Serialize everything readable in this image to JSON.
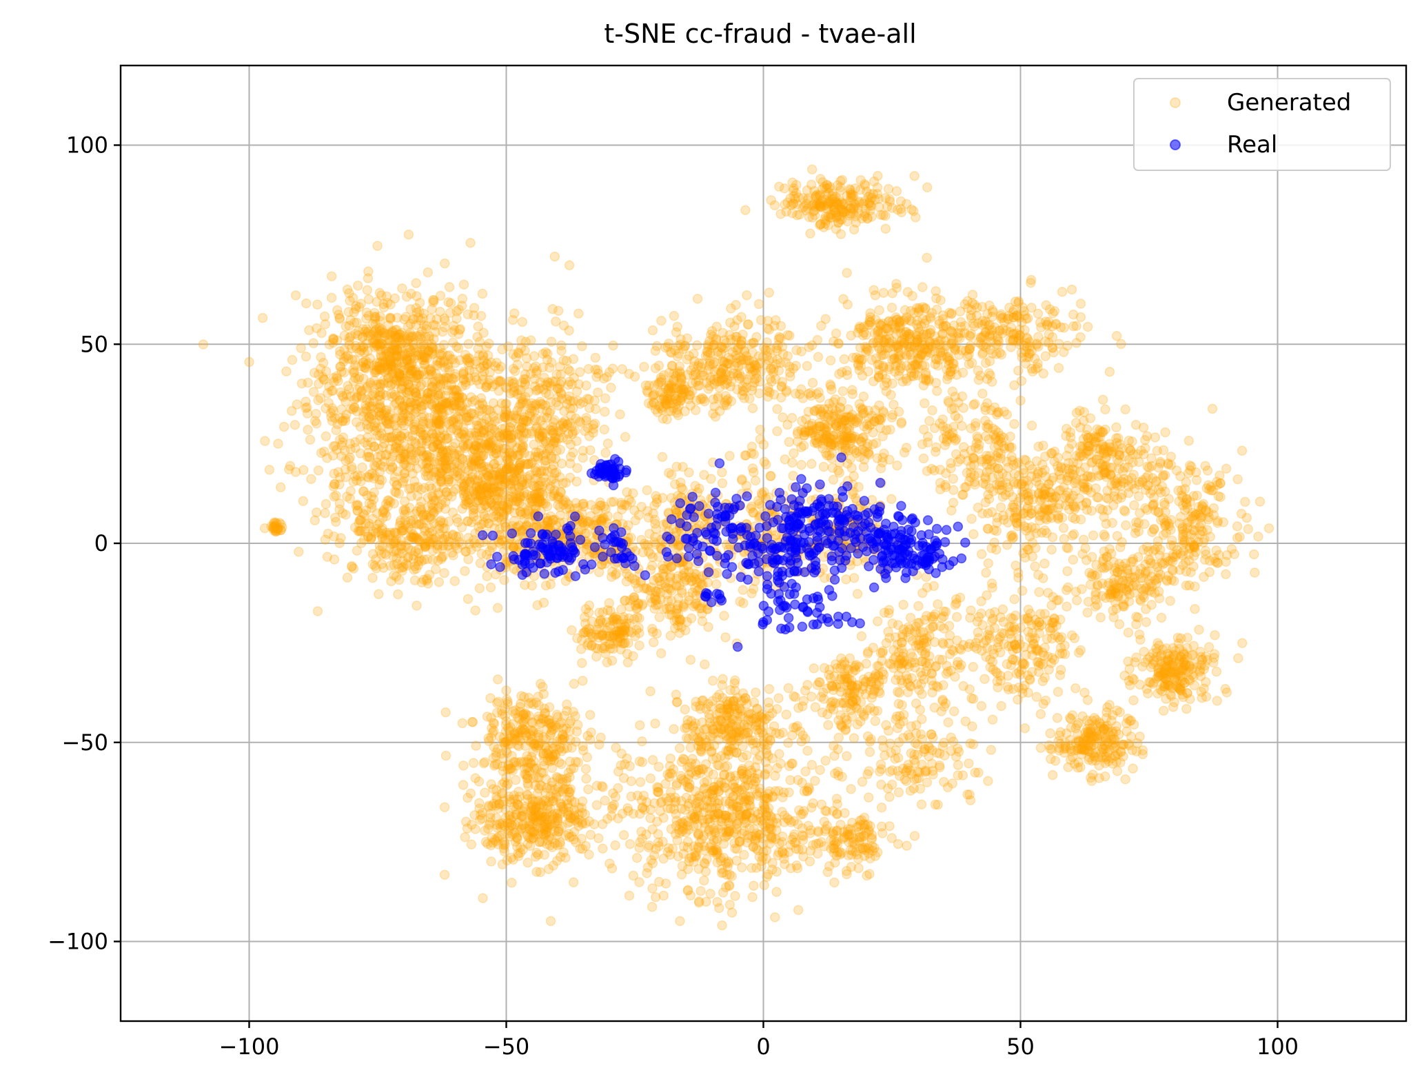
{
  "chart_data": {
    "type": "scatter",
    "title": "t-SNE cc-fraud - tvae-all",
    "xlabel": "",
    "ylabel": "",
    "xlim": [
      -125,
      125
    ],
    "ylim": [
      -120,
      120
    ],
    "xticks": [
      -100,
      -50,
      0,
      50,
      100
    ],
    "yticks": [
      -100,
      -50,
      0,
      50,
      100
    ],
    "xtick_labels": [
      "−100",
      "−50",
      "0",
      "50",
      "100"
    ],
    "ytick_labels": [
      "−100",
      "−50",
      "0",
      "50",
      "100"
    ],
    "grid": true,
    "legend": "top-right",
    "series": [
      {
        "name": "Generated",
        "color": "#ffa500",
        "alpha": 0.25,
        "clusters": [
          {
            "cx": -65,
            "cy": 28,
            "sx": 11,
            "sy": 15,
            "n": 1100
          },
          {
            "cx": -50,
            "cy": 15,
            "sx": 6,
            "sy": 12,
            "n": 500
          },
          {
            "cx": -72,
            "cy": 48,
            "sx": 7,
            "sy": 8,
            "n": 400
          },
          {
            "cx": -70,
            "cy": 0,
            "sx": 6,
            "sy": 5,
            "n": 200
          },
          {
            "cx": -40,
            "cy": 35,
            "sx": 6,
            "sy": 8,
            "n": 200
          },
          {
            "cx": -35,
            "cy": 2,
            "sx": 7,
            "sy": 5,
            "n": 250
          },
          {
            "cx": -30,
            "cy": -22,
            "sx": 3,
            "sy": 3,
            "n": 120
          },
          {
            "cx": -18,
            "cy": -12,
            "sx": 5,
            "sy": 7,
            "n": 200
          },
          {
            "cx": -15,
            "cy": 5,
            "sx": 5,
            "sy": 6,
            "n": 150
          },
          {
            "cx": -5,
            "cy": 45,
            "sx": 7,
            "sy": 6,
            "n": 300
          },
          {
            "cx": -18,
            "cy": 38,
            "sx": 3,
            "sy": 3,
            "n": 100
          },
          {
            "cx": 15,
            "cy": 85,
            "sx": 6,
            "sy": 3,
            "n": 220
          },
          {
            "cx": 0,
            "cy": 5,
            "sx": 4,
            "sy": 8,
            "n": 150
          },
          {
            "cx": 15,
            "cy": 28,
            "sx": 5,
            "sy": 5,
            "n": 250
          },
          {
            "cx": 15,
            "cy": 2,
            "sx": 5,
            "sy": 6,
            "n": 150
          },
          {
            "cx": 27,
            "cy": 50,
            "sx": 6,
            "sy": 6,
            "n": 300
          },
          {
            "cx": 45,
            "cy": 52,
            "sx": 8,
            "sy": 5,
            "n": 250
          },
          {
            "cx": 40,
            "cy": 25,
            "sx": 5,
            "sy": 7,
            "n": 150
          },
          {
            "cx": 52,
            "cy": 10,
            "sx": 5,
            "sy": 7,
            "n": 200
          },
          {
            "cx": 65,
            "cy": 20,
            "sx": 6,
            "sy": 7,
            "n": 250
          },
          {
            "cx": 82,
            "cy": 5,
            "sx": 6,
            "sy": 8,
            "n": 250
          },
          {
            "cx": 70,
            "cy": -10,
            "sx": 5,
            "sy": 5,
            "n": 150
          },
          {
            "cx": 80,
            "cy": -32,
            "sx": 4,
            "sy": 4,
            "n": 200
          },
          {
            "cx": 63,
            "cy": -50,
            "sx": 5,
            "sy": 4,
            "n": 200
          },
          {
            "cx": 50,
            "cy": -25,
            "sx": 5,
            "sy": 8,
            "n": 200
          },
          {
            "cx": 30,
            "cy": -28,
            "sx": 5,
            "sy": 8,
            "n": 200
          },
          {
            "cx": 17,
            "cy": -38,
            "sx": 4,
            "sy": 5,
            "n": 150
          },
          {
            "cx": 30,
            "cy": -55,
            "sx": 6,
            "sy": 5,
            "n": 120
          },
          {
            "cx": 17,
            "cy": -75,
            "sx": 4,
            "sy": 4,
            "n": 120
          },
          {
            "cx": -45,
            "cy": -68,
            "sx": 6,
            "sy": 6,
            "n": 400
          },
          {
            "cx": -45,
            "cy": -48,
            "sx": 6,
            "sy": 5,
            "n": 250
          },
          {
            "cx": -8,
            "cy": -68,
            "sx": 9,
            "sy": 10,
            "n": 650
          },
          {
            "cx": -5,
            "cy": -45,
            "sx": 6,
            "sy": 4,
            "n": 200
          },
          {
            "cx": -95,
            "cy": 4,
            "sx": 0.8,
            "sy": 0.8,
            "n": 25
          }
        ]
      },
      {
        "name": "Real",
        "color": "#0000ff",
        "alpha": 0.55,
        "clusters": [
          {
            "cx": -30,
            "cy": 18,
            "sx": 1.5,
            "sy": 1.5,
            "n": 40
          },
          {
            "cx": -42,
            "cy": -2,
            "sx": 5,
            "sy": 3,
            "n": 90
          },
          {
            "cx": -29,
            "cy": 1,
            "sx": 1.2,
            "sy": 1.5,
            "n": 15
          },
          {
            "cx": -28,
            "cy": -4,
            "sx": 2,
            "sy": 1,
            "n": 10
          },
          {
            "cx": -12,
            "cy": 3,
            "sx": 4,
            "sy": 5,
            "n": 40
          },
          {
            "cx": -7,
            "cy": 5,
            "sx": 2,
            "sy": 3,
            "n": 30
          },
          {
            "cx": 2,
            "cy": -3,
            "sx": 4,
            "sy": 6,
            "n": 80
          },
          {
            "cx": 10,
            "cy": 5,
            "sx": 6,
            "sy": 5,
            "n": 150
          },
          {
            "cx": 26,
            "cy": 0,
            "sx": 5,
            "sy": 4,
            "n": 120
          },
          {
            "cx": 8,
            "cy": -18,
            "sx": 5,
            "sy": 3,
            "n": 40
          },
          {
            "cx": -10,
            "cy": -13,
            "sx": 1.5,
            "sy": 1.5,
            "n": 8
          },
          {
            "cx": 32,
            "cy": -4,
            "sx": 3,
            "sy": 2,
            "n": 20
          }
        ],
        "extra_points": [
          [
            -5,
            -26
          ],
          [
            -23,
            -8
          ]
        ]
      }
    ]
  }
}
